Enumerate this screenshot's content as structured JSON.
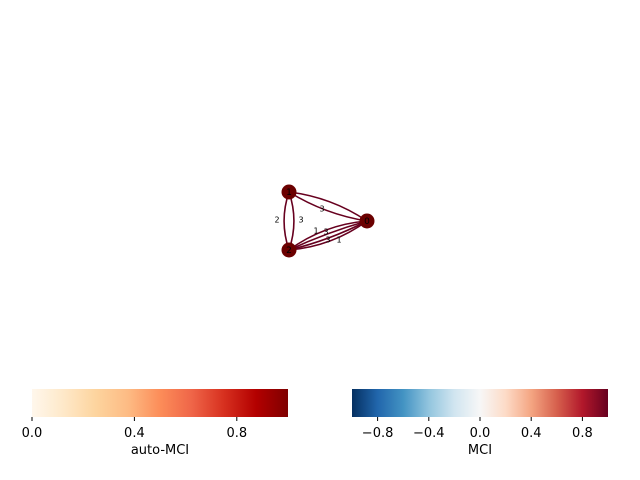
{
  "graph": {
    "nodes": [
      {
        "id": "1",
        "label": "1"
      },
      {
        "id": "0",
        "label": "0"
      },
      {
        "id": "2",
        "label": "2"
      }
    ],
    "edges": [
      {
        "from": "1",
        "to": "2",
        "label": "2"
      },
      {
        "from": "1",
        "to": "2",
        "label": "3"
      },
      {
        "from": "1",
        "to": "0",
        "label": "3"
      },
      {
        "from": "1",
        "to": "0",
        "label": ""
      },
      {
        "from": "2",
        "to": "0",
        "label": "1"
      },
      {
        "from": "2",
        "to": "0",
        "label": "3"
      },
      {
        "from": "2",
        "to": "0",
        "label": "3"
      },
      {
        "from": "2",
        "to": "0",
        "label": "1"
      }
    ],
    "node_color": "#6b0000",
    "edge_color": "#67001f"
  },
  "colorbars": [
    {
      "label": "auto-MCI",
      "ticks": [
        "0.0",
        "0.4",
        "0.8"
      ],
      "colors": [
        "#fff7ec",
        "#fee8c8",
        "#fdd49e",
        "#fdbb84",
        "#fc8d59",
        "#ef6548",
        "#d7301f",
        "#b30000",
        "#7f0000"
      ]
    },
    {
      "label": "MCI",
      "ticks": [
        "−0.8",
        "−0.4",
        "0.0",
        "0.4",
        "0.8"
      ],
      "colors": [
        "#053061",
        "#2166ac",
        "#4393c3",
        "#92c5de",
        "#d1e5f0",
        "#f7f7f7",
        "#fddbc7",
        "#f4a582",
        "#d6604d",
        "#b2182b",
        "#67001f"
      ]
    }
  ]
}
